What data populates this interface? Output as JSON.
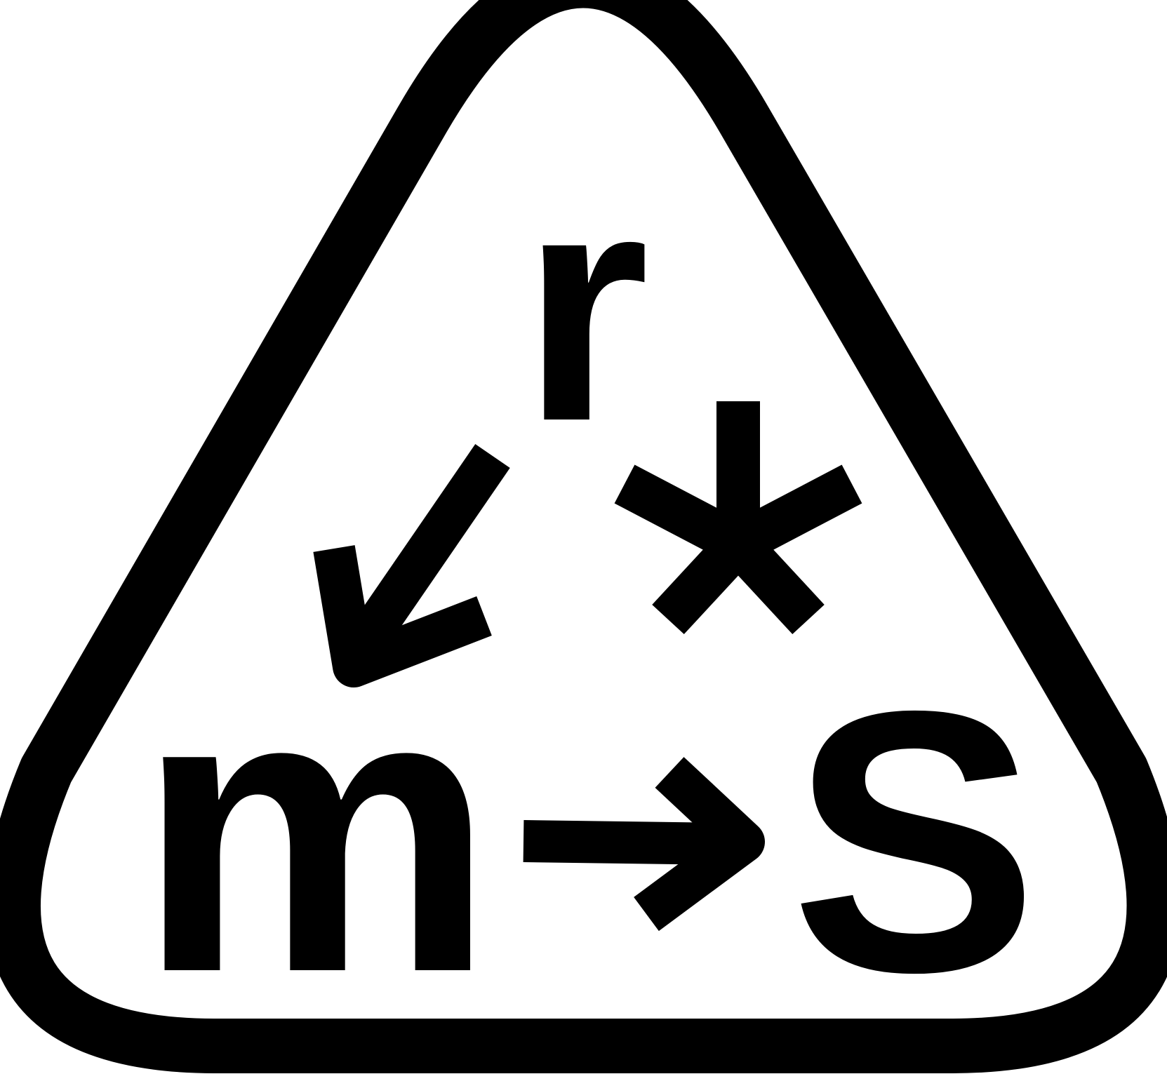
{
  "logo": {
    "letters": {
      "top": "r",
      "bottom_left": "m",
      "bottom_right": "S"
    },
    "symbols": {
      "center": "asterisk-icon",
      "left_arrow": "arrow-down-left-icon",
      "bottom_arrow": "arrow-right-icon"
    },
    "colors": {
      "ink": "#000000",
      "background": "#ffffff"
    }
  }
}
